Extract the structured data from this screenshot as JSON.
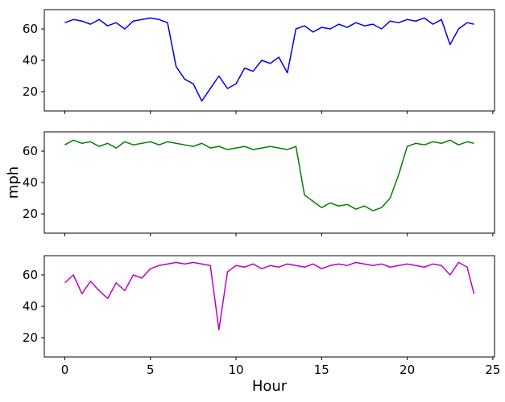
{
  "chart_data": [
    {
      "type": "line",
      "color": "#0000ee",
      "x": [
        0,
        0.5,
        1,
        1.5,
        2,
        2.5,
        3,
        3.5,
        4,
        4.5,
        5,
        5.5,
        6,
        6.5,
        7,
        7.5,
        8,
        8.5,
        9,
        9.5,
        10,
        10.5,
        11,
        11.5,
        12,
        12.5,
        13,
        13.5,
        14,
        14.5,
        15,
        15.5,
        16,
        16.5,
        17,
        17.5,
        18,
        18.5,
        19,
        19.5,
        20,
        20.5,
        21,
        21.5,
        22,
        22.5,
        23,
        23.5,
        23.9
      ],
      "values": [
        64,
        66,
        65,
        63,
        66,
        62,
        64,
        60,
        65,
        66,
        67,
        66,
        64,
        36,
        28,
        25,
        14,
        22,
        30,
        22,
        25,
        35,
        33,
        40,
        38,
        42,
        32,
        60,
        62,
        58,
        61,
        60,
        63,
        61,
        64,
        62,
        63,
        60,
        65,
        64,
        66,
        65,
        67,
        63,
        66,
        50,
        60,
        64,
        63
      ],
      "xlim": [
        -1.2,
        25.1
      ],
      "ylim": [
        7.7,
        72.3
      ],
      "xticks": [
        0,
        5,
        10,
        15,
        20,
        25
      ],
      "yticks": [
        20,
        40,
        60
      ],
      "xtick_labels": false
    },
    {
      "type": "line",
      "color": "#008000",
      "ylabel": "mph",
      "x": [
        0,
        0.5,
        1,
        1.5,
        2,
        2.5,
        3,
        3.5,
        4,
        4.5,
        5,
        5.5,
        6,
        6.5,
        7,
        7.5,
        8,
        8.5,
        9,
        9.5,
        10,
        10.5,
        11,
        11.5,
        12,
        12.5,
        13,
        13.5,
        14,
        14.5,
        15,
        15.5,
        16,
        16.5,
        17,
        17.5,
        18,
        18.5,
        19,
        19.5,
        20,
        20.5,
        21,
        21.5,
        22,
        22.5,
        23,
        23.5,
        23.9
      ],
      "values": [
        64,
        67,
        65,
        66,
        63,
        65,
        62,
        66,
        64,
        65,
        66,
        64,
        66,
        65,
        64,
        63,
        65,
        62,
        63,
        61,
        62,
        63,
        61,
        62,
        63,
        62,
        61,
        63,
        32,
        28,
        24,
        27,
        25,
        26,
        23,
        25,
        22,
        24,
        30,
        45,
        63,
        65,
        64,
        66,
        65,
        67,
        64,
        66,
        65
      ],
      "xlim": [
        -1.2,
        25.1
      ],
      "ylim": [
        7.7,
        72.3
      ],
      "xticks": [
        0,
        5,
        10,
        15,
        20,
        25
      ],
      "yticks": [
        20,
        40,
        60
      ],
      "xtick_labels": false
    },
    {
      "type": "line",
      "color": "#bf00bf",
      "xlabel": "Hour",
      "x": [
        0,
        0.5,
        1,
        1.5,
        2,
        2.5,
        3,
        3.5,
        4,
        4.5,
        5,
        5.5,
        6,
        6.5,
        7,
        7.5,
        8,
        8.5,
        9,
        9.5,
        10,
        10.5,
        11,
        11.5,
        12,
        12.5,
        13,
        13.5,
        14,
        14.5,
        15,
        15.5,
        16,
        16.5,
        17,
        17.5,
        18,
        18.5,
        19,
        19.5,
        20,
        20.5,
        21,
        21.5,
        22,
        22.5,
        23,
        23.5,
        23.9
      ],
      "values": [
        55,
        60,
        48,
        56,
        50,
        45,
        55,
        50,
        60,
        58,
        64,
        66,
        67,
        68,
        67,
        68,
        67,
        66,
        25,
        62,
        66,
        65,
        67,
        64,
        66,
        65,
        67,
        66,
        65,
        67,
        64,
        66,
        67,
        66,
        68,
        67,
        66,
        67,
        65,
        66,
        67,
        66,
        65,
        67,
        66,
        60,
        68,
        65,
        48
      ],
      "xlim": [
        -1.2,
        25.1
      ],
      "ylim": [
        7.7,
        72.3
      ],
      "xticks": [
        0,
        5,
        10,
        15,
        20,
        25
      ],
      "yticks": [
        20,
        40,
        60
      ],
      "xtick_labels": true
    }
  ]
}
